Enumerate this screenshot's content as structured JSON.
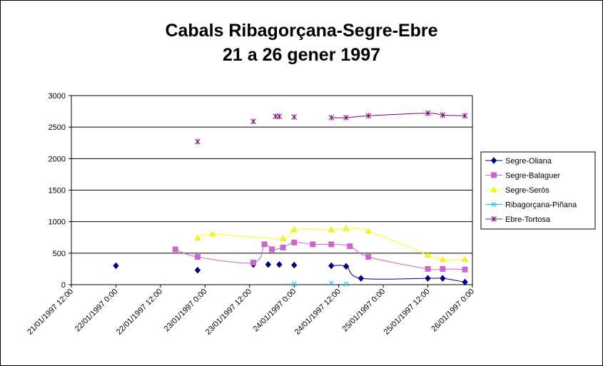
{
  "chart_data": {
    "type": "scatter",
    "title_lines": [
      "Cabals Ribagorçana-Segre-Ebre",
      "21 a 26 gener 1997"
    ],
    "xlabel": "",
    "ylabel": "",
    "ylim": [
      0,
      3000
    ],
    "yticks": [
      0,
      500,
      1000,
      1500,
      2000,
      2500,
      3000
    ],
    "xlim": [
      "21/01/1997 12:00",
      "26/01/1997 00:00"
    ],
    "xticks": [
      "21/01/1997 12:00",
      "22/01/1997 0:00",
      "22/01/1997 12:00",
      "23/01/1997 0:00",
      "23/01/1997 12:00",
      "24/01/1997 0:00",
      "24/01/1997 12:00",
      "25/01/1997 0:00",
      "25/01/1997 12:00",
      "26/01/1997 0:00"
    ],
    "grid": "horizontal",
    "legend_position": "right",
    "series": [
      {
        "name": "Segre-Oliana",
        "color": "#000080",
        "marker": "diamond",
        "x": [
          "22/01/1997 0:00",
          "22/01/1997 22:00",
          "23/01/1997 13:00",
          "23/01/1997 17:00",
          "23/01/1997 20:00",
          "24/01/1997 0:00",
          "24/01/1997 10:00",
          "24/01/1997 14:00",
          "24/01/1997 18:00",
          "25/01/1997 12:00",
          "25/01/1997 16:00",
          "25/01/1997 22:00"
        ],
        "y": [
          300,
          230,
          320,
          320,
          320,
          310,
          300,
          290,
          100,
          100,
          100,
          40
        ],
        "connected": [
          false,
          false,
          false,
          false,
          false,
          false,
          true,
          true,
          true,
          true,
          true,
          true
        ]
      },
      {
        "name": "Segre-Balaguer",
        "color": "#CC66CC",
        "marker": "square",
        "x": [
          "22/01/1997 16:00",
          "22/01/1997 22:00",
          "23/01/1997 13:00",
          "23/01/1997 16:00",
          "23/01/1997 18:00",
          "23/01/1997 21:00",
          "24/01/1997 0:00",
          "24/01/1997 5:00",
          "24/01/1997 10:00",
          "24/01/1997 15:00",
          "24/01/1997 20:00",
          "25/01/1997 12:00",
          "25/01/1997 16:00",
          "25/01/1997 22:00"
        ],
        "y": [
          560,
          440,
          350,
          640,
          560,
          590,
          670,
          640,
          640,
          610,
          440,
          250,
          250,
          240
        ],
        "connected": [
          true,
          true,
          true,
          true,
          true,
          true,
          true,
          true,
          true,
          true,
          true,
          true,
          true,
          true
        ]
      },
      {
        "name": "Segre-Seròs",
        "color": "#FFFF00",
        "marker": "triangle",
        "x": [
          "22/01/1997 22:00",
          "23/01/1997 2:00",
          "23/01/1997 21:00",
          "24/01/1997 0:00",
          "24/01/1997 10:00",
          "24/01/1997 14:00",
          "24/01/1997 20:00",
          "25/01/1997 12:00",
          "25/01/1997 16:00",
          "25/01/1997 22:00"
        ],
        "y": [
          740,
          800,
          730,
          870,
          870,
          890,
          850,
          470,
          400,
          400
        ],
        "connected": [
          true,
          true,
          true,
          true,
          true,
          true,
          true,
          true,
          true,
          true
        ]
      },
      {
        "name": "Ribagorçana-Piñana",
        "color": "#00CCFF",
        "marker": "x",
        "x": [
          "24/01/1997 0:00",
          "24/01/1997 10:00",
          "24/01/1997 14:00"
        ],
        "y": [
          10,
          20,
          10
        ],
        "connected": [
          false,
          false,
          false
        ]
      },
      {
        "name": "Ebre-Tortosa",
        "color": "#800080",
        "marker": "star",
        "x": [
          "22/01/1997 22:00",
          "23/01/1997 13:00",
          "23/01/1997 19:00",
          "23/01/1997 20:00",
          "24/01/1997 0:00",
          "24/01/1997 10:00",
          "24/01/1997 14:00",
          "24/01/1997 20:00",
          "25/01/1997 12:00",
          "25/01/1997 16:00",
          "25/01/1997 22:00"
        ],
        "y": [
          2270,
          2590,
          2670,
          2670,
          2660,
          2650,
          2650,
          2680,
          2720,
          2690,
          2680
        ],
        "connected": [
          false,
          false,
          false,
          false,
          false,
          true,
          true,
          true,
          true,
          true,
          true
        ]
      }
    ]
  }
}
